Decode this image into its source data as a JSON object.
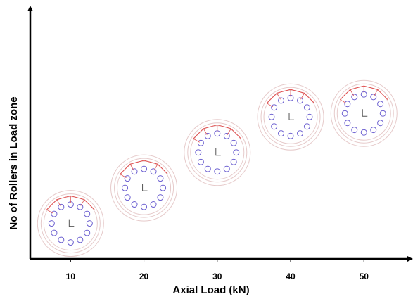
{
  "chart_data": {
    "type": "scatter",
    "x_label": "Axial Load (kN)",
    "y_label": "No of Rollers in Load zone",
    "x": [
      10,
      20,
      30,
      40,
      50
    ],
    "values": [
      1,
      2,
      3,
      4,
      4.1
    ],
    "xlim": [
      4.5,
      56.5
    ],
    "xticks": [
      10,
      20,
      30,
      40,
      50
    ],
    "ylim": [
      0,
      7
    ],
    "roller_color": "#6b5fd0",
    "load_zone_color": "#e05050",
    "ring_color": "#e6caca"
  }
}
